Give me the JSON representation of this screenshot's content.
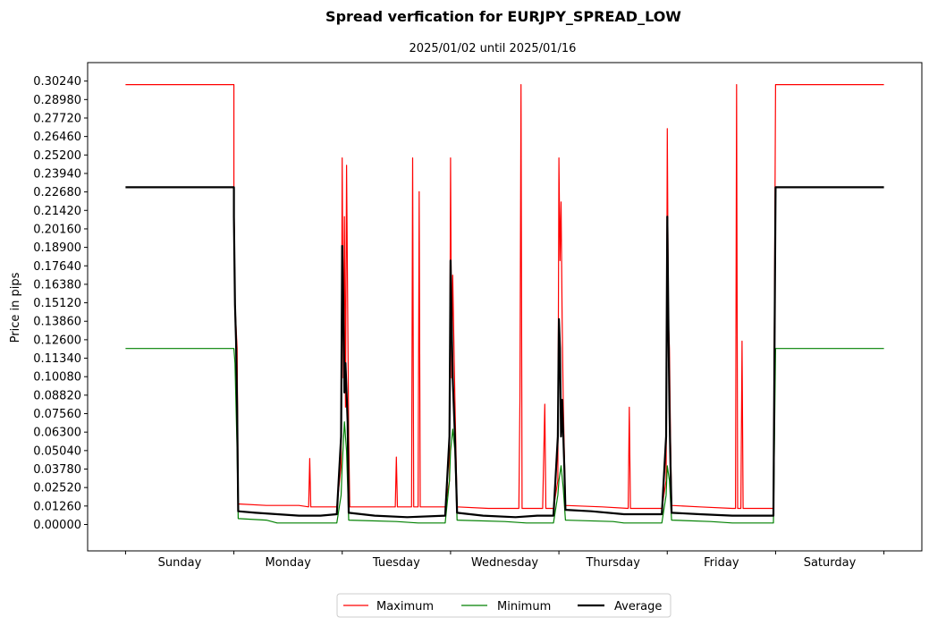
{
  "chart_data": {
    "type": "line",
    "title": "Spread verfication for EURJPY_SPREAD_LOW",
    "subtitle": "2025/01/02 until 2025/01/16",
    "xlabel": "",
    "ylabel": "Price in pips",
    "categories": [
      "Sunday",
      "Monday",
      "Tuesday",
      "Wednesday",
      "Thursday",
      "Friday",
      "Saturday"
    ],
    "y_ticks": [
      "0.00000",
      "0.01260",
      "0.02520",
      "0.03780",
      "0.05040",
      "0.06300",
      "0.07560",
      "0.08820",
      "0.10080",
      "0.11340",
      "0.12600",
      "0.13860",
      "0.15120",
      "0.16380",
      "0.17640",
      "0.18900",
      "0.20160",
      "0.21420",
      "0.22680",
      "0.23940",
      "0.25200",
      "0.26460",
      "0.27720",
      "0.28980",
      "0.30240"
    ],
    "ylim": [
      -0.018,
      0.315
    ],
    "xlim": [
      -0.35,
      7.35
    ],
    "legend": {
      "placement": "bottom-center-outside",
      "entries": [
        "Maximum",
        "Minimum",
        "Average"
      ]
    },
    "grid": false,
    "series": [
      {
        "name": "Maximum",
        "color": "#ff0000",
        "width": 1.2,
        "points": [
          [
            0,
            0.3
          ],
          [
            1,
            0.3
          ],
          [
            1.0,
            0.23
          ],
          [
            1.01,
            0.15
          ],
          [
            1.03,
            0.12
          ],
          [
            1.04,
            0.014
          ],
          [
            1.3,
            0.013
          ],
          [
            1.6,
            0.013
          ],
          [
            1.69,
            0.012
          ],
          [
            1.7,
            0.045
          ],
          [
            1.71,
            0.012
          ],
          [
            1.95,
            0.012
          ],
          [
            1.99,
            0.04
          ],
          [
            2.0,
            0.25
          ],
          [
            2.01,
            0.1
          ],
          [
            2.02,
            0.21
          ],
          [
            2.03,
            0.08
          ],
          [
            2.04,
            0.245
          ],
          [
            2.06,
            0.06
          ],
          [
            2.07,
            0.012
          ],
          [
            2.3,
            0.012
          ],
          [
            2.49,
            0.012
          ],
          [
            2.5,
            0.046
          ],
          [
            2.51,
            0.012
          ],
          [
            2.64,
            0.012
          ],
          [
            2.65,
            0.25
          ],
          [
            2.66,
            0.012
          ],
          [
            2.7,
            0.012
          ],
          [
            2.71,
            0.227
          ],
          [
            2.72,
            0.012
          ],
          [
            2.95,
            0.012
          ],
          [
            2.99,
            0.03
          ],
          [
            3.0,
            0.25
          ],
          [
            3.01,
            0.1
          ],
          [
            3.02,
            0.17
          ],
          [
            3.04,
            0.085
          ],
          [
            3.06,
            0.012
          ],
          [
            3.35,
            0.011
          ],
          [
            3.6,
            0.011
          ],
          [
            3.63,
            0.011
          ],
          [
            3.64,
            0.085
          ],
          [
            3.65,
            0.3
          ],
          [
            3.66,
            0.011
          ],
          [
            3.85,
            0.011
          ],
          [
            3.87,
            0.082
          ],
          [
            3.88,
            0.011
          ],
          [
            3.95,
            0.011
          ],
          [
            3.99,
            0.03
          ],
          [
            4.0,
            0.25
          ],
          [
            4.01,
            0.18
          ],
          [
            4.02,
            0.22
          ],
          [
            4.03,
            0.14
          ],
          [
            4.04,
            0.085
          ],
          [
            4.06,
            0.013
          ],
          [
            4.4,
            0.012
          ],
          [
            4.64,
            0.011
          ],
          [
            4.65,
            0.08
          ],
          [
            4.66,
            0.011
          ],
          [
            4.95,
            0.011
          ],
          [
            4.99,
            0.03
          ],
          [
            5.0,
            0.27
          ],
          [
            5.01,
            0.14
          ],
          [
            5.02,
            0.12
          ],
          [
            5.03,
            0.06
          ],
          [
            5.04,
            0.013
          ],
          [
            5.3,
            0.012
          ],
          [
            5.6,
            0.011
          ],
          [
            5.63,
            0.011
          ],
          [
            5.64,
            0.3
          ],
          [
            5.65,
            0.011
          ],
          [
            5.68,
            0.011
          ],
          [
            5.69,
            0.125
          ],
          [
            5.7,
            0.011
          ],
          [
            5.98,
            0.011
          ],
          [
            6.0,
            0.3
          ],
          [
            7.0,
            0.3
          ]
        ]
      },
      {
        "name": "Minimum",
        "color": "#008000",
        "width": 1.2,
        "points": [
          [
            0,
            0.12
          ],
          [
            1,
            0.12
          ],
          [
            1.0,
            0.12
          ],
          [
            1.01,
            0.11
          ],
          [
            1.02,
            0.08
          ],
          [
            1.03,
            0.05
          ],
          [
            1.04,
            0.004
          ],
          [
            1.3,
            0.003
          ],
          [
            1.4,
            0.001
          ],
          [
            1.95,
            0.001
          ],
          [
            1.99,
            0.02
          ],
          [
            2.0,
            0.04
          ],
          [
            2.02,
            0.07
          ],
          [
            2.04,
            0.05
          ],
          [
            2.06,
            0.003
          ],
          [
            2.5,
            0.002
          ],
          [
            2.7,
            0.001
          ],
          [
            2.95,
            0.001
          ],
          [
            2.99,
            0.03
          ],
          [
            3.0,
            0.05
          ],
          [
            3.02,
            0.065
          ],
          [
            3.04,
            0.05
          ],
          [
            3.06,
            0.003
          ],
          [
            3.5,
            0.002
          ],
          [
            3.7,
            0.001
          ],
          [
            3.95,
            0.001
          ],
          [
            3.99,
            0.02
          ],
          [
            4.0,
            0.03
          ],
          [
            4.02,
            0.04
          ],
          [
            4.04,
            0.025
          ],
          [
            4.06,
            0.003
          ],
          [
            4.5,
            0.002
          ],
          [
            4.6,
            0.001
          ],
          [
            4.95,
            0.001
          ],
          [
            4.99,
            0.02
          ],
          [
            5.0,
            0.04
          ],
          [
            5.02,
            0.03
          ],
          [
            5.04,
            0.003
          ],
          [
            5.4,
            0.002
          ],
          [
            5.6,
            0.001
          ],
          [
            5.98,
            0.001
          ],
          [
            6.0,
            0.12
          ],
          [
            7.0,
            0.12
          ]
        ]
      },
      {
        "name": "Average",
        "color": "#000000",
        "width": 2.2,
        "points": [
          [
            0,
            0.23
          ],
          [
            1,
            0.23
          ],
          [
            1.0,
            0.21
          ],
          [
            1.01,
            0.15
          ],
          [
            1.02,
            0.125
          ],
          [
            1.03,
            0.08
          ],
          [
            1.04,
            0.009
          ],
          [
            1.2,
            0.008
          ],
          [
            1.4,
            0.007
          ],
          [
            1.6,
            0.006
          ],
          [
            1.8,
            0.006
          ],
          [
            1.95,
            0.007
          ],
          [
            1.99,
            0.06
          ],
          [
            2.0,
            0.19
          ],
          [
            2.01,
            0.15
          ],
          [
            2.02,
            0.09
          ],
          [
            2.03,
            0.11
          ],
          [
            2.05,
            0.07
          ],
          [
            2.06,
            0.008
          ],
          [
            2.3,
            0.006
          ],
          [
            2.6,
            0.005
          ],
          [
            2.95,
            0.006
          ],
          [
            2.99,
            0.06
          ],
          [
            3.0,
            0.18
          ],
          [
            3.01,
            0.14
          ],
          [
            3.02,
            0.1
          ],
          [
            3.04,
            0.06
          ],
          [
            3.06,
            0.008
          ],
          [
            3.3,
            0.006
          ],
          [
            3.6,
            0.005
          ],
          [
            3.8,
            0.006
          ],
          [
            3.95,
            0.006
          ],
          [
            3.99,
            0.06
          ],
          [
            4.0,
            0.14
          ],
          [
            4.01,
            0.12
          ],
          [
            4.02,
            0.06
          ],
          [
            4.03,
            0.085
          ],
          [
            4.05,
            0.04
          ],
          [
            4.06,
            0.01
          ],
          [
            4.3,
            0.009
          ],
          [
            4.6,
            0.007
          ],
          [
            4.95,
            0.007
          ],
          [
            4.99,
            0.06
          ],
          [
            5.0,
            0.21
          ],
          [
            5.01,
            0.14
          ],
          [
            5.02,
            0.08
          ],
          [
            5.03,
            0.04
          ],
          [
            5.04,
            0.008
          ],
          [
            5.3,
            0.007
          ],
          [
            5.6,
            0.006
          ],
          [
            5.98,
            0.006
          ],
          [
            6.0,
            0.23
          ],
          [
            7.0,
            0.23
          ]
        ]
      }
    ]
  }
}
